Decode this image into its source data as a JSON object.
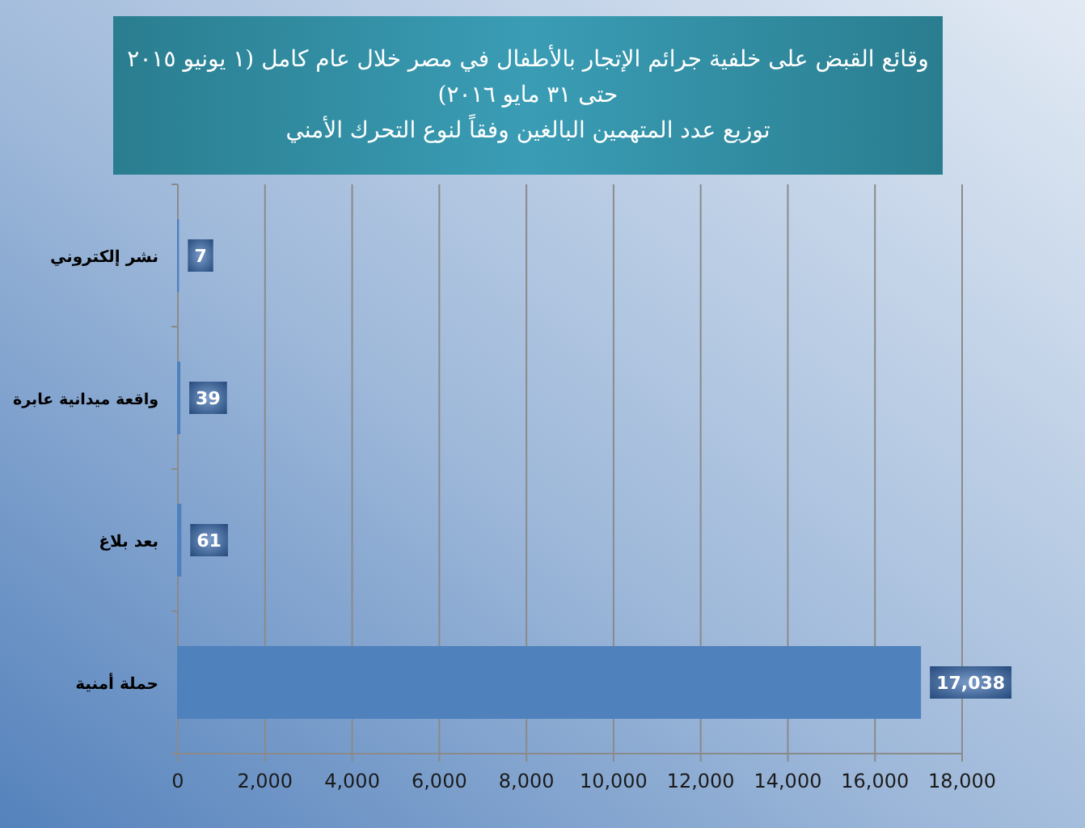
{
  "chart_data": {
    "type": "bar",
    "orientation": "horizontal",
    "title": "وقائع القبض على خلفية جرائم الإتجار بالأطفال في مصر خلال عام كامل (١ يونيو ٢٠١٥ حتى ٣١ مايو ٢٠١٦)",
    "subtitle": "توزيع عدد المتهمين البالغين وفقاً لنوع التحرك الأمني",
    "categories": [
      "نشر إلكتروني",
      "واقعة ميدانية عابرة",
      "بعد بلاغ",
      "حملة أمنية"
    ],
    "values": [
      7,
      39,
      61,
      17038
    ],
    "color": "#4f81bd",
    "value_labels": [
      "7",
      "39",
      "61",
      "17,038"
    ],
    "xlim": [
      0,
      18000
    ],
    "xticks": [
      0,
      {
        "value": 2000,
        "label": "2,000"
      },
      {
        "value": 4000,
        "label": "4,000"
      },
      {
        "value": 6000,
        "label": "6,000"
      },
      {
        "value": 8000,
        "label": "8,000"
      },
      {
        "value": 10000,
        "label": "10,000"
      },
      {
        "value": 12000,
        "label": "12,000"
      },
      {
        "value": 14000,
        "label": "14,000"
      },
      {
        "value": 16000,
        "label": "16,000"
      },
      {
        "value": 18000,
        "label": "18,000"
      }
    ],
    "grid": "x"
  }
}
